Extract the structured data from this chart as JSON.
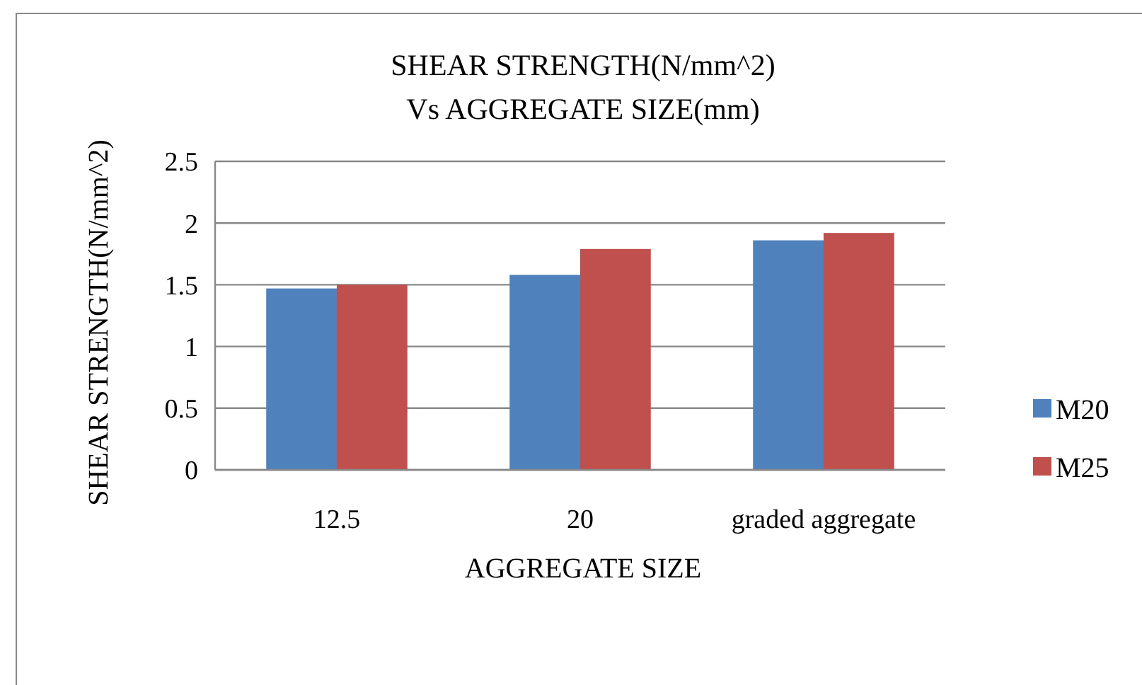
{
  "chart_data": {
    "type": "bar",
    "title": "SHEAR STRENGTH(N/mm^2)\nVs AGGREGATE SIZE(mm)",
    "xlabel": "AGGREGATE SIZE",
    "ylabel": "SHEAR STRENGTH(N/mm^2)",
    "categories": [
      "12.5",
      "20",
      "graded aggregate"
    ],
    "series": [
      {
        "name": "M20",
        "color": "#4f81bd",
        "values": [
          1.47,
          1.58,
          1.86
        ]
      },
      {
        "name": "M25",
        "color": "#c0504d",
        "values": [
          1.5,
          1.79,
          1.92
        ]
      }
    ],
    "ylim": [
      0,
      2.5
    ],
    "yticks": [
      0,
      0.5,
      1,
      1.5,
      2,
      2.5
    ],
    "grid": "y",
    "legend": "right"
  }
}
